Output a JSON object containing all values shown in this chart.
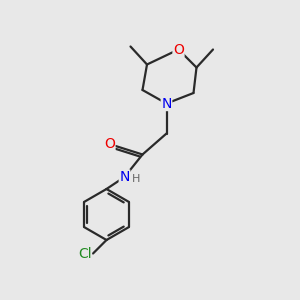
{
  "background_color": "#e8e8e8",
  "bond_color": "#2a2a2a",
  "atom_colors": {
    "O": "#ee0000",
    "N": "#0000ee",
    "Cl": "#228b22",
    "C": "#2a2a2a",
    "H": "#555555"
  },
  "line_width": 1.6,
  "font_size_atom": 10,
  "font_size_H": 8,
  "font_size_Cl": 10
}
